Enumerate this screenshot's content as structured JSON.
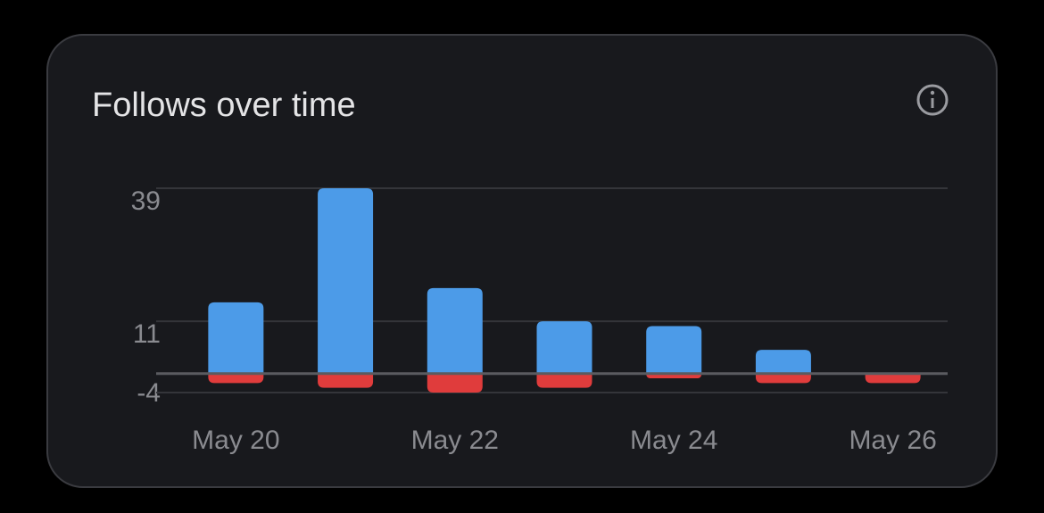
{
  "chart_data": {
    "type": "bar",
    "title": "Follows over time",
    "categories": [
      "May 20",
      null,
      "May 22",
      null,
      "May 24",
      null,
      "May 26"
    ],
    "series": [
      {
        "color": "#4c9be8",
        "values": [
          15,
          39,
          18,
          11,
          10,
          5,
          0
        ]
      },
      {
        "color": "#e03c3c",
        "values": [
          -2,
          -3,
          -4,
          -3,
          -1,
          -2,
          -2
        ]
      }
    ],
    "ylim": [
      -4,
      39
    ],
    "yticks": [
      -4,
      11,
      39
    ],
    "grid": true
  }
}
